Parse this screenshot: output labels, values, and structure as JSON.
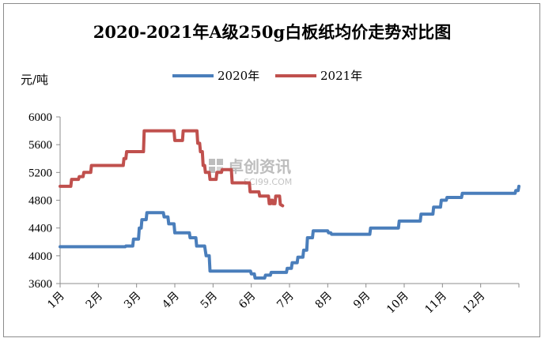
{
  "chart_data": {
    "type": "line",
    "title": "2020-2021年A级250g白板纸均价走势对比图",
    "ylabel": "元/吨",
    "ylim": [
      3600,
      6000
    ],
    "yticks": [
      3600,
      4000,
      4400,
      4800,
      5200,
      5600,
      6000
    ],
    "categories": [
      "1月",
      "2月",
      "3月",
      "4月",
      "5月",
      "6月",
      "7月",
      "8月",
      "9月",
      "10月",
      "11月",
      "12月"
    ],
    "legend_position": "top",
    "grid": false,
    "x_unit": "month (fractional, 1 = start of January)",
    "watermark": {
      "main": "卓创资讯",
      "sub": "SCI99.COM"
    },
    "series": [
      {
        "name": "2020年",
        "color": "#4a7ebb",
        "x": [
          1.0,
          2.7,
          2.72,
          2.9,
          2.92,
          3.05,
          3.07,
          3.12,
          3.14,
          3.25,
          3.27,
          3.7,
          3.72,
          3.82,
          3.84,
          3.98,
          4.0,
          4.38,
          4.4,
          4.55,
          4.57,
          4.78,
          4.82,
          4.9,
          4.92,
          5.98,
          6.0,
          6.08,
          6.1,
          6.35,
          6.37,
          6.5,
          6.52,
          6.92,
          6.94,
          7.05,
          7.07,
          7.2,
          7.22,
          7.35,
          7.37,
          7.45,
          7.47,
          7.6,
          7.62,
          8.0,
          8.02,
          8.08,
          8.1,
          9.1,
          9.12,
          9.85,
          9.87,
          10.42,
          10.44,
          10.75,
          10.77,
          10.95,
          10.97,
          11.1,
          11.12,
          11.5,
          11.52,
          12.9,
          12.92,
          12.98,
          13.0
        ],
        "values": [
          4130,
          4130,
          4140,
          4140,
          4240,
          4240,
          4400,
          4400,
          4520,
          4520,
          4620,
          4620,
          4560,
          4560,
          4460,
          4460,
          4330,
          4330,
          4260,
          4260,
          4140,
          4140,
          4000,
          4000,
          3780,
          3780,
          3740,
          3740,
          3680,
          3680,
          3720,
          3720,
          3760,
          3760,
          3820,
          3820,
          3900,
          3900,
          3980,
          3980,
          4080,
          4080,
          4260,
          4260,
          4360,
          4360,
          4330,
          4330,
          4310,
          4310,
          4400,
          4400,
          4500,
          4500,
          4600,
          4600,
          4700,
          4700,
          4800,
          4800,
          4840,
          4840,
          4900,
          4900,
          4940,
          4940,
          5000
        ]
      },
      {
        "name": "2021年",
        "color": "#c0504d",
        "x": [
          1.0,
          1.28,
          1.3,
          1.48,
          1.5,
          1.6,
          1.62,
          1.8,
          1.82,
          2.65,
          2.67,
          2.72,
          2.74,
          3.18,
          3.2,
          3.98,
          4.0,
          4.2,
          4.22,
          4.58,
          4.6,
          4.65,
          4.67,
          4.72,
          4.74,
          4.78,
          4.8,
          4.9,
          4.92,
          5.08,
          5.1,
          5.22,
          5.24,
          5.48,
          5.5,
          5.95,
          5.97,
          6.2,
          6.22,
          6.45,
          6.47,
          6.5,
          6.52,
          6.55,
          6.57,
          6.62,
          6.64,
          6.74,
          6.76,
          6.82
        ],
        "values": [
          5000,
          5000,
          5100,
          5100,
          5140,
          5140,
          5200,
          5200,
          5300,
          5300,
          5400,
          5400,
          5500,
          5500,
          5800,
          5800,
          5660,
          5660,
          5800,
          5800,
          5620,
          5620,
          5500,
          5500,
          5300,
          5300,
          5200,
          5200,
          5100,
          5100,
          5200,
          5200,
          5240,
          5240,
          5050,
          5050,
          4920,
          4920,
          4860,
          4860,
          4750,
          4750,
          4800,
          4800,
          4750,
          4750,
          4860,
          4860,
          4740,
          4720
        ]
      }
    ]
  }
}
